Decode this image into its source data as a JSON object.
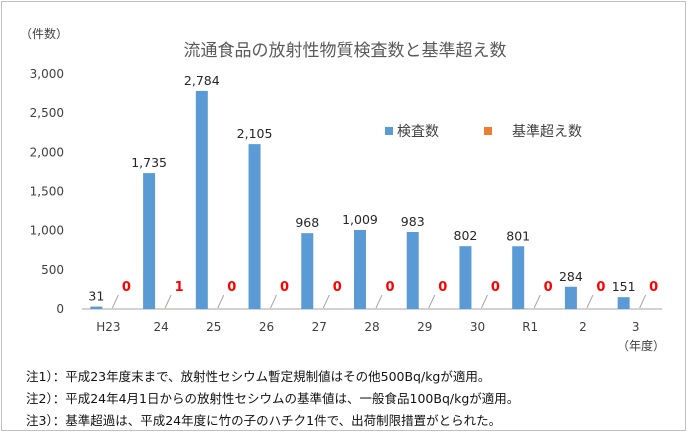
{
  "chart_data": {
    "type": "bar",
    "title": "流通食品の放射性物質検査数と基準超え数",
    "yunit": "（件数）",
    "xunit": "（年度）",
    "ylim": [
      0,
      3000
    ],
    "yticks": [
      "0",
      "500",
      "1,000",
      "1,500",
      "2,000",
      "2,500",
      "3,000"
    ],
    "ytick_values": [
      0,
      500,
      1000,
      1500,
      2000,
      2500,
      3000
    ],
    "categories": [
      "H23",
      "24",
      "25",
      "26",
      "27",
      "28",
      "29",
      "30",
      "R1",
      "2",
      "3"
    ],
    "series": [
      {
        "name": "検査数",
        "color": "#5b9bd5",
        "values": [
          31,
          1735,
          2784,
          2105,
          968,
          1009,
          983,
          802,
          801,
          284,
          151
        ],
        "labels": [
          "31",
          "1,735",
          "2,784",
          "2,105",
          "968",
          "1,009",
          "983",
          "802",
          "801",
          "284",
          "151"
        ]
      },
      {
        "name": "基準超え数",
        "color": "#ed7d31",
        "values": [
          0,
          1,
          0,
          0,
          0,
          0,
          0,
          0,
          0,
          0,
          0
        ],
        "labels": [
          "0",
          "1",
          "0",
          "0",
          "0",
          "0",
          "0",
          "0",
          "0",
          "0",
          "0"
        ]
      }
    ],
    "legend_position": "right",
    "grid": false
  },
  "notes": [
    {
      "label": "注1）",
      "text": "：平成23年度末まで、放射性セシウム暫定規制値はその他500Bq/kgが適用。"
    },
    {
      "label": "注2）",
      "text": "：平成24年4月1日からの放射性セシウムの基準値は、一般食品100Bq/kgが適用。"
    },
    {
      "label": "注3）",
      "text": "：基準超過は、平成24年度に竹の子のハチク1件で、出荷制限措置がとられた。"
    }
  ],
  "colors": {
    "label_zero": "#ff0000",
    "axis": "#a6a6a6"
  }
}
